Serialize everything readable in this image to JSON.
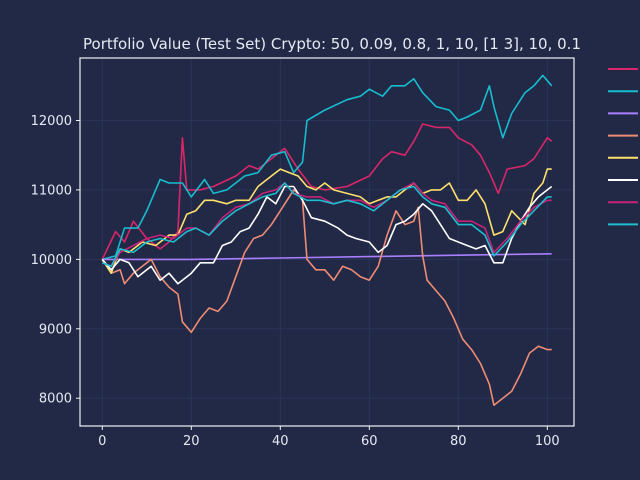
{
  "chart_data": {
    "type": "line",
    "title": "Portfolio Value (Test Set) Crypto: 50, 0.09, 0.8, 1, 10, [1 3], 10, 0.1",
    "xlabel": "",
    "ylabel": "",
    "xlim": [
      -5,
      106
    ],
    "ylim": [
      7600,
      12900
    ],
    "xticks": [
      0,
      20,
      40,
      60,
      80,
      100
    ],
    "yticks": [
      8000,
      9000,
      10000,
      11000,
      12000
    ],
    "grid": true,
    "legend_position": "outside-right",
    "background": "#212946",
    "series": [
      {
        "color": "#d9266a",
        "keypoints": [
          [
            0,
            10000
          ],
          [
            3,
            10400
          ],
          [
            5,
            10250
          ],
          [
            7,
            10550
          ],
          [
            10,
            10300
          ],
          [
            13,
            10150
          ],
          [
            15,
            10250
          ],
          [
            17,
            10400
          ],
          [
            18,
            11750
          ],
          [
            19,
            11000
          ],
          [
            22,
            11000
          ],
          [
            25,
            11050
          ],
          [
            30,
            11200
          ],
          [
            33,
            11350
          ],
          [
            35,
            11300
          ],
          [
            38,
            11450
          ],
          [
            41,
            11600
          ],
          [
            44,
            11300
          ],
          [
            47,
            11050
          ],
          [
            50,
            11000
          ],
          [
            55,
            11050
          ],
          [
            60,
            11200
          ],
          [
            63,
            11450
          ],
          [
            65,
            11550
          ],
          [
            68,
            11500
          ],
          [
            70,
            11700
          ],
          [
            72,
            11950
          ],
          [
            75,
            11900
          ],
          [
            78,
            11900
          ],
          [
            80,
            11750
          ],
          [
            83,
            11650
          ],
          [
            85,
            11500
          ],
          [
            87,
            11250
          ],
          [
            89,
            10950
          ],
          [
            91,
            11300
          ],
          [
            95,
            11350
          ],
          [
            97,
            11450
          ],
          [
            100,
            11750
          ],
          [
            101,
            11700
          ]
        ]
      },
      {
        "color": "#17bccf",
        "keypoints": [
          [
            0,
            10000
          ],
          [
            3,
            10050
          ],
          [
            5,
            10450
          ],
          [
            8,
            10450
          ],
          [
            10,
            10700
          ],
          [
            13,
            11150
          ],
          [
            15,
            11100
          ],
          [
            18,
            11100
          ],
          [
            20,
            10900
          ],
          [
            23,
            11150
          ],
          [
            25,
            10950
          ],
          [
            28,
            11000
          ],
          [
            32,
            11200
          ],
          [
            35,
            11250
          ],
          [
            38,
            11500
          ],
          [
            41,
            11550
          ],
          [
            43,
            11250
          ],
          [
            45,
            11400
          ],
          [
            46,
            12000
          ],
          [
            50,
            12150
          ],
          [
            55,
            12300
          ],
          [
            58,
            12350
          ],
          [
            60,
            12450
          ],
          [
            63,
            12350
          ],
          [
            65,
            12500
          ],
          [
            68,
            12500
          ],
          [
            70,
            12600
          ],
          [
            72,
            12400
          ],
          [
            75,
            12200
          ],
          [
            78,
            12150
          ],
          [
            80,
            12000
          ],
          [
            82,
            12050
          ],
          [
            85,
            12150
          ],
          [
            87,
            12500
          ],
          [
            88,
            12200
          ],
          [
            90,
            11750
          ],
          [
            92,
            12100
          ],
          [
            95,
            12400
          ],
          [
            97,
            12500
          ],
          [
            99,
            12650
          ],
          [
            101,
            12500
          ]
        ]
      },
      {
        "color": "#a97eff",
        "keypoints": [
          [
            0,
            10000
          ],
          [
            20,
            10000
          ],
          [
            40,
            10020
          ],
          [
            60,
            10040
          ],
          [
            80,
            10060
          ],
          [
            101,
            10080
          ]
        ]
      },
      {
        "color": "#ee8b74",
        "keypoints": [
          [
            0,
            10000
          ],
          [
            2,
            9800
          ],
          [
            4,
            9850
          ],
          [
            5,
            9650
          ],
          [
            7,
            9800
          ],
          [
            9,
            9900
          ],
          [
            11,
            10000
          ],
          [
            13,
            9750
          ],
          [
            15,
            9600
          ],
          [
            17,
            9500
          ],
          [
            18,
            9100
          ],
          [
            20,
            8950
          ],
          [
            22,
            9150
          ],
          [
            24,
            9300
          ],
          [
            26,
            9250
          ],
          [
            28,
            9400
          ],
          [
            30,
            9750
          ],
          [
            32,
            10100
          ],
          [
            34,
            10300
          ],
          [
            36,
            10350
          ],
          [
            38,
            10500
          ],
          [
            40,
            10700
          ],
          [
            42,
            10900
          ],
          [
            43,
            11000
          ],
          [
            44,
            10950
          ],
          [
            45,
            10850
          ],
          [
            46,
            10000
          ],
          [
            48,
            9850
          ],
          [
            50,
            9850
          ],
          [
            52,
            9700
          ],
          [
            54,
            9900
          ],
          [
            56,
            9850
          ],
          [
            58,
            9750
          ],
          [
            60,
            9700
          ],
          [
            62,
            9900
          ],
          [
            64,
            10350
          ],
          [
            66,
            10700
          ],
          [
            68,
            10500
          ],
          [
            70,
            10550
          ],
          [
            71,
            10750
          ],
          [
            72,
            10050
          ],
          [
            73,
            9700
          ],
          [
            75,
            9550
          ],
          [
            77,
            9400
          ],
          [
            79,
            9150
          ],
          [
            81,
            8850
          ],
          [
            83,
            8700
          ],
          [
            85,
            8500
          ],
          [
            87,
            8200
          ],
          [
            88,
            7900
          ],
          [
            90,
            8000
          ],
          [
            92,
            8100
          ],
          [
            94,
            8350
          ],
          [
            96,
            8650
          ],
          [
            98,
            8750
          ],
          [
            100,
            8700
          ],
          [
            101,
            8700
          ]
        ]
      },
      {
        "color": "#fee06c",
        "keypoints": [
          [
            0,
            10000
          ],
          [
            2,
            9800
          ],
          [
            4,
            10150
          ],
          [
            6,
            10100
          ],
          [
            9,
            10250
          ],
          [
            12,
            10200
          ],
          [
            15,
            10350
          ],
          [
            17,
            10350
          ],
          [
            19,
            10650
          ],
          [
            21,
            10700
          ],
          [
            23,
            10850
          ],
          [
            25,
            10850
          ],
          [
            28,
            10800
          ],
          [
            30,
            10850
          ],
          [
            33,
            10850
          ],
          [
            35,
            11050
          ],
          [
            38,
            11200
          ],
          [
            40,
            11300
          ],
          [
            42,
            11250
          ],
          [
            44,
            11200
          ],
          [
            46,
            11050
          ],
          [
            48,
            11000
          ],
          [
            50,
            11100
          ],
          [
            52,
            11000
          ],
          [
            55,
            10950
          ],
          [
            58,
            10900
          ],
          [
            60,
            10800
          ],
          [
            62,
            10850
          ],
          [
            64,
            10900
          ],
          [
            66,
            10900
          ],
          [
            68,
            11000
          ],
          [
            70,
            11100
          ],
          [
            72,
            10950
          ],
          [
            74,
            11000
          ],
          [
            76,
            11000
          ],
          [
            78,
            11100
          ],
          [
            80,
            10850
          ],
          [
            82,
            10850
          ],
          [
            84,
            11000
          ],
          [
            86,
            10800
          ],
          [
            88,
            10350
          ],
          [
            90,
            10400
          ],
          [
            92,
            10700
          ],
          [
            95,
            10500
          ],
          [
            97,
            10950
          ],
          [
            99,
            11100
          ],
          [
            100,
            11300
          ],
          [
            101,
            11300
          ]
        ]
      },
      {
        "color": "#ffffff",
        "keypoints": [
          [
            0,
            10000
          ],
          [
            2,
            9850
          ],
          [
            4,
            10000
          ],
          [
            6,
            9950
          ],
          [
            8,
            9750
          ],
          [
            11,
            9900
          ],
          [
            13,
            9700
          ],
          [
            15,
            9800
          ],
          [
            17,
            9650
          ],
          [
            20,
            9800
          ],
          [
            22,
            9950
          ],
          [
            25,
            9950
          ],
          [
            27,
            10200
          ],
          [
            29,
            10250
          ],
          [
            31,
            10400
          ],
          [
            33,
            10450
          ],
          [
            35,
            10650
          ],
          [
            37,
            10900
          ],
          [
            39,
            10800
          ],
          [
            41,
            11050
          ],
          [
            43,
            11050
          ],
          [
            45,
            10850
          ],
          [
            47,
            10600
          ],
          [
            50,
            10550
          ],
          [
            53,
            10450
          ],
          [
            55,
            10350
          ],
          [
            57,
            10300
          ],
          [
            60,
            10250
          ],
          [
            62,
            10100
          ],
          [
            64,
            10200
          ],
          [
            66,
            10500
          ],
          [
            68,
            10550
          ],
          [
            70,
            10650
          ],
          [
            72,
            10800
          ],
          [
            74,
            10700
          ],
          [
            76,
            10500
          ],
          [
            78,
            10300
          ],
          [
            80,
            10250
          ],
          [
            82,
            10200
          ],
          [
            84,
            10150
          ],
          [
            86,
            10200
          ],
          [
            88,
            9950
          ],
          [
            90,
            9950
          ],
          [
            92,
            10300
          ],
          [
            94,
            10550
          ],
          [
            96,
            10750
          ],
          [
            98,
            10900
          ],
          [
            100,
            11000
          ],
          [
            101,
            11050
          ]
        ]
      },
      {
        "color": "#c8237a",
        "keypoints": [
          [
            0,
            9950
          ],
          [
            2,
            9900
          ],
          [
            4,
            10100
          ],
          [
            7,
            10200
          ],
          [
            10,
            10300
          ],
          [
            13,
            10350
          ],
          [
            16,
            10300
          ],
          [
            19,
            10450
          ],
          [
            21,
            10450
          ],
          [
            24,
            10350
          ],
          [
            27,
            10600
          ],
          [
            30,
            10750
          ],
          [
            33,
            10800
          ],
          [
            36,
            10950
          ],
          [
            39,
            11000
          ],
          [
            41,
            11100
          ],
          [
            43,
            10950
          ],
          [
            46,
            10900
          ],
          [
            49,
            10900
          ],
          [
            52,
            10800
          ],
          [
            55,
            10850
          ],
          [
            58,
            10850
          ],
          [
            61,
            10750
          ],
          [
            64,
            10850
          ],
          [
            67,
            11000
          ],
          [
            70,
            11100
          ],
          [
            72,
            10950
          ],
          [
            74,
            10850
          ],
          [
            77,
            10800
          ],
          [
            80,
            10550
          ],
          [
            83,
            10550
          ],
          [
            86,
            10450
          ],
          [
            88,
            10100
          ],
          [
            91,
            10300
          ],
          [
            94,
            10550
          ],
          [
            97,
            10750
          ],
          [
            100,
            10850
          ],
          [
            101,
            10850
          ]
        ]
      },
      {
        "color": "#1ebfcf",
        "keypoints": [
          [
            0,
            9950
          ],
          [
            2,
            9900
          ],
          [
            4,
            10150
          ],
          [
            7,
            10100
          ],
          [
            10,
            10250
          ],
          [
            13,
            10300
          ],
          [
            16,
            10250
          ],
          [
            19,
            10400
          ],
          [
            21,
            10450
          ],
          [
            24,
            10350
          ],
          [
            27,
            10550
          ],
          [
            30,
            10700
          ],
          [
            33,
            10800
          ],
          [
            36,
            10900
          ],
          [
            39,
            10950
          ],
          [
            41,
            11100
          ],
          [
            43,
            10950
          ],
          [
            46,
            10850
          ],
          [
            49,
            10850
          ],
          [
            52,
            10800
          ],
          [
            55,
            10850
          ],
          [
            58,
            10800
          ],
          [
            61,
            10700
          ],
          [
            64,
            10850
          ],
          [
            67,
            11000
          ],
          [
            70,
            11050
          ],
          [
            72,
            10900
          ],
          [
            74,
            10800
          ],
          [
            77,
            10750
          ],
          [
            80,
            10500
          ],
          [
            83,
            10500
          ],
          [
            86,
            10350
          ],
          [
            88,
            10050
          ],
          [
            91,
            10250
          ],
          [
            94,
            10500
          ],
          [
            97,
            10700
          ],
          [
            100,
            10900
          ],
          [
            101,
            10900
          ]
        ]
      }
    ]
  }
}
